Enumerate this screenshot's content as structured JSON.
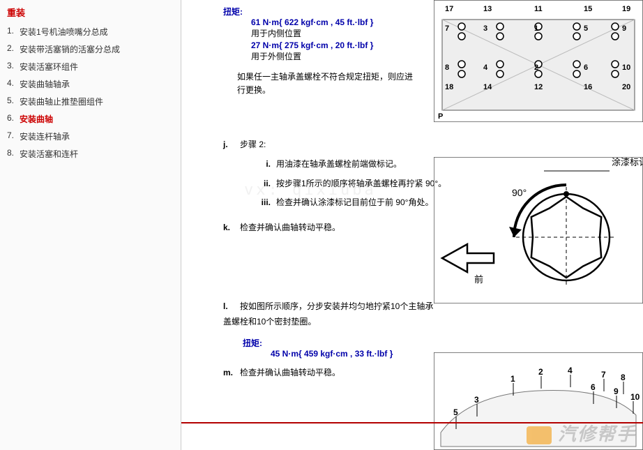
{
  "sidebar": {
    "title": "重装",
    "items": [
      {
        "num": "1",
        "label": "安装1号机油喷嘴分总成"
      },
      {
        "num": "2",
        "label": "安装带活塞销的活塞分总成"
      },
      {
        "num": "3",
        "label": "安装活塞环组件"
      },
      {
        "num": "4",
        "label": "安装曲轴轴承"
      },
      {
        "num": "5",
        "label": "安装曲轴止推垫圈组件"
      },
      {
        "num": "6",
        "label": "安装曲轴"
      },
      {
        "num": "7",
        "label": "安装连杆轴承"
      },
      {
        "num": "8",
        "label": "安装活塞和连杆"
      }
    ],
    "active": 5
  },
  "content": {
    "torque_label": "扭矩:",
    "torque1": "61 N·m{ 622 kgf·cm , 45 ft.·lbf }",
    "torque1_note": "用于内侧位置",
    "torque2": "27 N·m{ 275 kgf·cm , 20 ft.·lbf }",
    "torque2_note": "用于外侧位置",
    "warn": "如果任一主轴承盖螺栓不符合规定扭矩，则应进行更换。",
    "step_j": {
      "m": "j.",
      "t": "步骤 2:"
    },
    "step_j_i": {
      "m": "i.",
      "t": "用油漆在轴承盖螺栓前端做标记。"
    },
    "step_j_ii": {
      "m": "ii.",
      "t": "按步骤1所示的顺序将轴承盖螺栓再拧紧 90°。"
    },
    "step_j_iii": {
      "m": "iii.",
      "t": "检查并确认涂漆标记目前位于前 90°角处。"
    },
    "step_k": {
      "m": "k.",
      "t": "检查并确认曲轴转动平稳。"
    },
    "step_l": {
      "m": "l.",
      "t": "按如图所示顺序，分步安装并均匀地拧紧10个主轴承盖螺栓和10个密封垫圈。"
    },
    "torque3_label": "扭矩:",
    "torque3": "45 N·m{ 459 kgf·cm , 33 ft.·lbf }",
    "step_m": {
      "m": "m.",
      "t": "检查并确认曲轴转动平稳。"
    },
    "fig2_label1": "涂漆标记",
    "fig2_label2": "前",
    "fig2_angle": "90°",
    "ghost_watermark": "vx: qixiuba",
    "watermark": "汽修帮手"
  },
  "fig1": {
    "box_stroke": "#333",
    "engine_fill": "#f0f0f0",
    "nums": [
      "17",
      "13",
      "11",
      "15",
      "19",
      "7",
      "3",
      "1",
      "5",
      "9",
      "8",
      "4",
      "2",
      "6",
      "10",
      "18",
      "14",
      "12",
      "16",
      "20"
    ]
  },
  "fig3_nums": [
    "5",
    "3",
    "1",
    "2",
    "4",
    "6",
    "7",
    "9",
    "8",
    "10"
  ]
}
